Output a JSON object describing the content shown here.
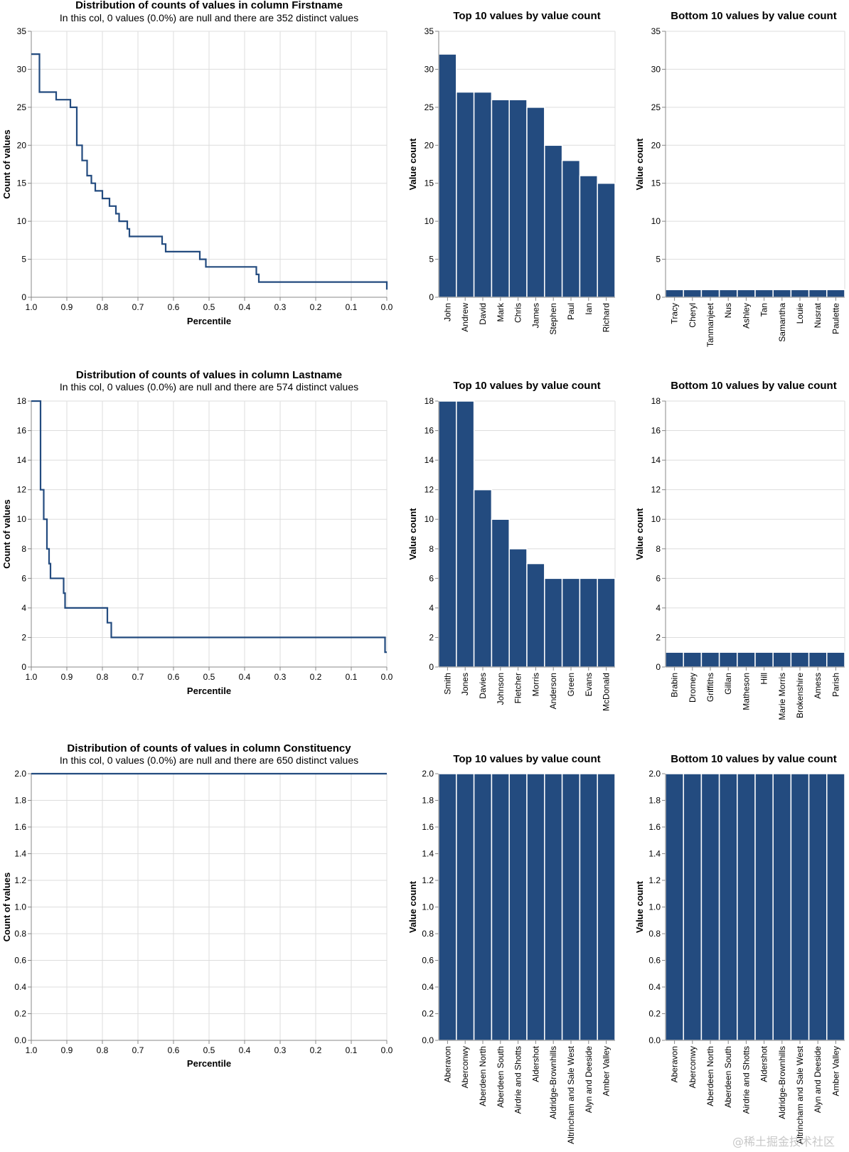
{
  "chart_data": [
    {
      "id": "firstname-dist",
      "type": "line",
      "step": true,
      "title": "Distribution of counts of values in column Firstname",
      "subtitle": "In this col, 0 values (0.0%) are null and there are 352 distinct values",
      "xlabel": "Percentile",
      "ylabel": "Count of values",
      "xlim": [
        1.0,
        0.0
      ],
      "ylim": [
        0,
        35
      ],
      "xticks": [
        "1.0",
        "0.9",
        "0.8",
        "0.7",
        "0.6",
        "0.5",
        "0.4",
        "0.3",
        "0.2",
        "0.1",
        "0.0"
      ],
      "yticks": [
        0,
        5,
        10,
        15,
        20,
        25,
        30,
        35
      ],
      "grid": true,
      "points": [
        [
          1.0,
          32
        ],
        [
          0.977,
          32
        ],
        [
          0.977,
          27
        ],
        [
          0.93,
          27
        ],
        [
          0.93,
          26
        ],
        [
          0.89,
          26
        ],
        [
          0.89,
          25
        ],
        [
          0.872,
          25
        ],
        [
          0.872,
          20
        ],
        [
          0.857,
          20
        ],
        [
          0.857,
          18
        ],
        [
          0.843,
          18
        ],
        [
          0.843,
          16
        ],
        [
          0.831,
          16
        ],
        [
          0.831,
          15
        ],
        [
          0.82,
          15
        ],
        [
          0.82,
          14
        ],
        [
          0.8,
          14
        ],
        [
          0.8,
          13
        ],
        [
          0.78,
          13
        ],
        [
          0.78,
          12
        ],
        [
          0.762,
          12
        ],
        [
          0.762,
          11
        ],
        [
          0.753,
          11
        ],
        [
          0.753,
          10
        ],
        [
          0.73,
          10
        ],
        [
          0.73,
          9
        ],
        [
          0.724,
          9
        ],
        [
          0.724,
          8
        ],
        [
          0.632,
          8
        ],
        [
          0.632,
          7
        ],
        [
          0.622,
          7
        ],
        [
          0.622,
          6
        ],
        [
          0.526,
          6
        ],
        [
          0.526,
          5
        ],
        [
          0.509,
          5
        ],
        [
          0.509,
          4
        ],
        [
          0.367,
          4
        ],
        [
          0.367,
          3
        ],
        [
          0.36,
          3
        ],
        [
          0.36,
          2
        ],
        [
          0.0,
          2
        ],
        [
          0.0,
          1
        ]
      ]
    },
    {
      "id": "firstname-top10",
      "type": "bar",
      "title": "Top 10 values by value count",
      "ylabel": "Value count",
      "ylim": [
        0,
        35
      ],
      "yticks": [
        0,
        5,
        10,
        15,
        20,
        25,
        30,
        35
      ],
      "categories": [
        "John",
        "Andrew",
        "David",
        "Mark",
        "Chris",
        "James",
        "Stephen",
        "Paul",
        "Ian",
        "Richard"
      ],
      "values": [
        32,
        27,
        27,
        26,
        26,
        25,
        20,
        18,
        16,
        15
      ]
    },
    {
      "id": "firstname-bottom10",
      "type": "bar",
      "title": "Bottom 10 values by value count",
      "ylabel": "Value count",
      "ylim": [
        0,
        35
      ],
      "yticks": [
        0,
        5,
        10,
        15,
        20,
        25,
        30,
        35
      ],
      "categories": [
        "Tracy",
        "Cheryl",
        "Tanmanjeet",
        "Nus",
        "Ashley",
        "Tan",
        "Samantha",
        "Louie",
        "Nusrat",
        "Paulette"
      ],
      "values": [
        1,
        1,
        1,
        1,
        1,
        1,
        1,
        1,
        1,
        1
      ]
    },
    {
      "id": "lastname-dist",
      "type": "line",
      "step": true,
      "title": "Distribution of counts of values in column Lastname",
      "subtitle": "In this col, 0 values (0.0%) are null and there are 574 distinct values",
      "xlabel": "Percentile",
      "ylabel": "Count of values",
      "xlim": [
        1.0,
        0.0
      ],
      "ylim": [
        0,
        18
      ],
      "xticks": [
        "1.0",
        "0.9",
        "0.8",
        "0.7",
        "0.6",
        "0.5",
        "0.4",
        "0.3",
        "0.2",
        "0.1",
        "0.0"
      ],
      "yticks": [
        0,
        2,
        4,
        6,
        8,
        10,
        12,
        14,
        16,
        18
      ],
      "grid": true,
      "points": [
        [
          1.0,
          18
        ],
        [
          0.974,
          18
        ],
        [
          0.974,
          12
        ],
        [
          0.965,
          12
        ],
        [
          0.965,
          10
        ],
        [
          0.956,
          10
        ],
        [
          0.956,
          8
        ],
        [
          0.95,
          8
        ],
        [
          0.95,
          7
        ],
        [
          0.946,
          7
        ],
        [
          0.946,
          6
        ],
        [
          0.909,
          6
        ],
        [
          0.909,
          5
        ],
        [
          0.905,
          5
        ],
        [
          0.905,
          4
        ],
        [
          0.786,
          4
        ],
        [
          0.786,
          3
        ],
        [
          0.775,
          3
        ],
        [
          0.775,
          2
        ],
        [
          0.005,
          2
        ],
        [
          0.005,
          1
        ],
        [
          0.0,
          1
        ]
      ]
    },
    {
      "id": "lastname-top10",
      "type": "bar",
      "title": "Top 10 values by value count",
      "ylabel": "Value count",
      "ylim": [
        0,
        18
      ],
      "yticks": [
        0,
        2,
        4,
        6,
        8,
        10,
        12,
        14,
        16,
        18
      ],
      "categories": [
        "Smith",
        "Jones",
        "Davies",
        "Johnson",
        "Fletcher",
        "Morris",
        "Anderson",
        "Green",
        "Evans",
        "McDonald"
      ],
      "values": [
        18,
        18,
        12,
        10,
        8,
        7,
        6,
        6,
        6,
        6
      ]
    },
    {
      "id": "lastname-bottom10",
      "type": "bar",
      "title": "Bottom 10 values by value count",
      "ylabel": "Value count",
      "ylim": [
        0,
        18
      ],
      "yticks": [
        0,
        2,
        4,
        6,
        8,
        10,
        12,
        14,
        16,
        18
      ],
      "categories": [
        "Brabin",
        "Dromey",
        "Griffiths",
        "Gillan",
        "Matheson",
        "Hill",
        "Marie Morris",
        "Brokenshire",
        "Amess",
        "Parish"
      ],
      "values": [
        1,
        1,
        1,
        1,
        1,
        1,
        1,
        1,
        1,
        1
      ]
    },
    {
      "id": "constituency-dist",
      "type": "line",
      "step": true,
      "title": "Distribution of counts of values in column Constituency",
      "subtitle": "In this col, 0 values (0.0%) are null and there are 650 distinct values",
      "xlabel": "Percentile",
      "ylabel": "Count of values",
      "xlim": [
        1.0,
        0.0
      ],
      "ylim": [
        0.0,
        2.0
      ],
      "xticks": [
        "1.0",
        "0.9",
        "0.8",
        "0.7",
        "0.6",
        "0.5",
        "0.4",
        "0.3",
        "0.2",
        "0.1",
        "0.0"
      ],
      "yticks": [
        "0.0",
        "0.2",
        "0.4",
        "0.6",
        "0.8",
        "1.0",
        "1.2",
        "1.4",
        "1.6",
        "1.8",
        "2.0"
      ],
      "grid": true,
      "points": [
        [
          1.0,
          2
        ],
        [
          0.0,
          2
        ]
      ]
    },
    {
      "id": "constituency-top10",
      "type": "bar",
      "title": "Top 10 values by value count",
      "ylabel": "Value count",
      "ylim": [
        0.0,
        2.0
      ],
      "yticks": [
        "0.0",
        "0.2",
        "0.4",
        "0.6",
        "0.8",
        "1.0",
        "1.2",
        "1.4",
        "1.6",
        "1.8",
        "2.0"
      ],
      "categories": [
        "Aberavon",
        "Aberconwy",
        "Aberdeen North",
        "Aberdeen South",
        "Airdrie and Shotts",
        "Aldershot",
        "Aldridge-Brownhills",
        "Altrincham and Sale West",
        "Alyn and Deeside",
        "Amber Valley"
      ],
      "values": [
        2,
        2,
        2,
        2,
        2,
        2,
        2,
        2,
        2,
        2
      ]
    },
    {
      "id": "constituency-bottom10",
      "type": "bar",
      "title": "Bottom 10 values by value count",
      "ylabel": "Value count",
      "ylim": [
        0.0,
        2.0
      ],
      "yticks": [
        "0.0",
        "0.2",
        "0.4",
        "0.6",
        "0.8",
        "1.0",
        "1.2",
        "1.4",
        "1.6",
        "1.8",
        "2.0"
      ],
      "categories": [
        "Aberavon",
        "Aberconwy",
        "Aberdeen North",
        "Aberdeen South",
        "Airdrie and Shotts",
        "Aldershot",
        "Aldridge-Brownhills",
        "Altrincham and Sale West",
        "Alyn and Deeside",
        "Amber Valley"
      ],
      "values": [
        2,
        2,
        2,
        2,
        2,
        2,
        2,
        2,
        2,
        2
      ]
    }
  ],
  "watermark": "@稀土掘金技术社区"
}
